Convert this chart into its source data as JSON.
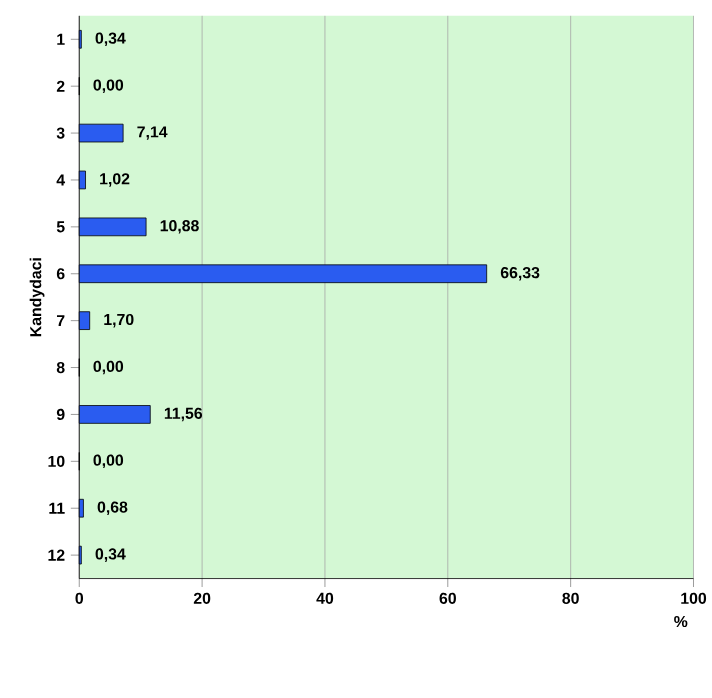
{
  "chart_data": {
    "type": "bar",
    "orientation": "horizontal",
    "ylabel": "Kandydaci",
    "xlabel": "%",
    "categories": [
      "1",
      "2",
      "3",
      "4",
      "5",
      "6",
      "7",
      "8",
      "9",
      "10",
      "11",
      "12"
    ],
    "values": [
      0.34,
      0.0,
      7.14,
      1.02,
      10.88,
      66.33,
      1.7,
      0.0,
      11.56,
      0.0,
      0.68,
      0.34
    ],
    "value_labels": [
      "0,34",
      "0,00",
      "7,14",
      "1,02",
      "10,88",
      "66,33",
      "1,70",
      "0,00",
      "11,56",
      "0,00",
      "0,68",
      "0,34"
    ],
    "color": "#2a5cf0",
    "xlim": [
      0,
      100
    ],
    "xticks": [
      0,
      20,
      40,
      60,
      80,
      100
    ],
    "grid": "x"
  }
}
